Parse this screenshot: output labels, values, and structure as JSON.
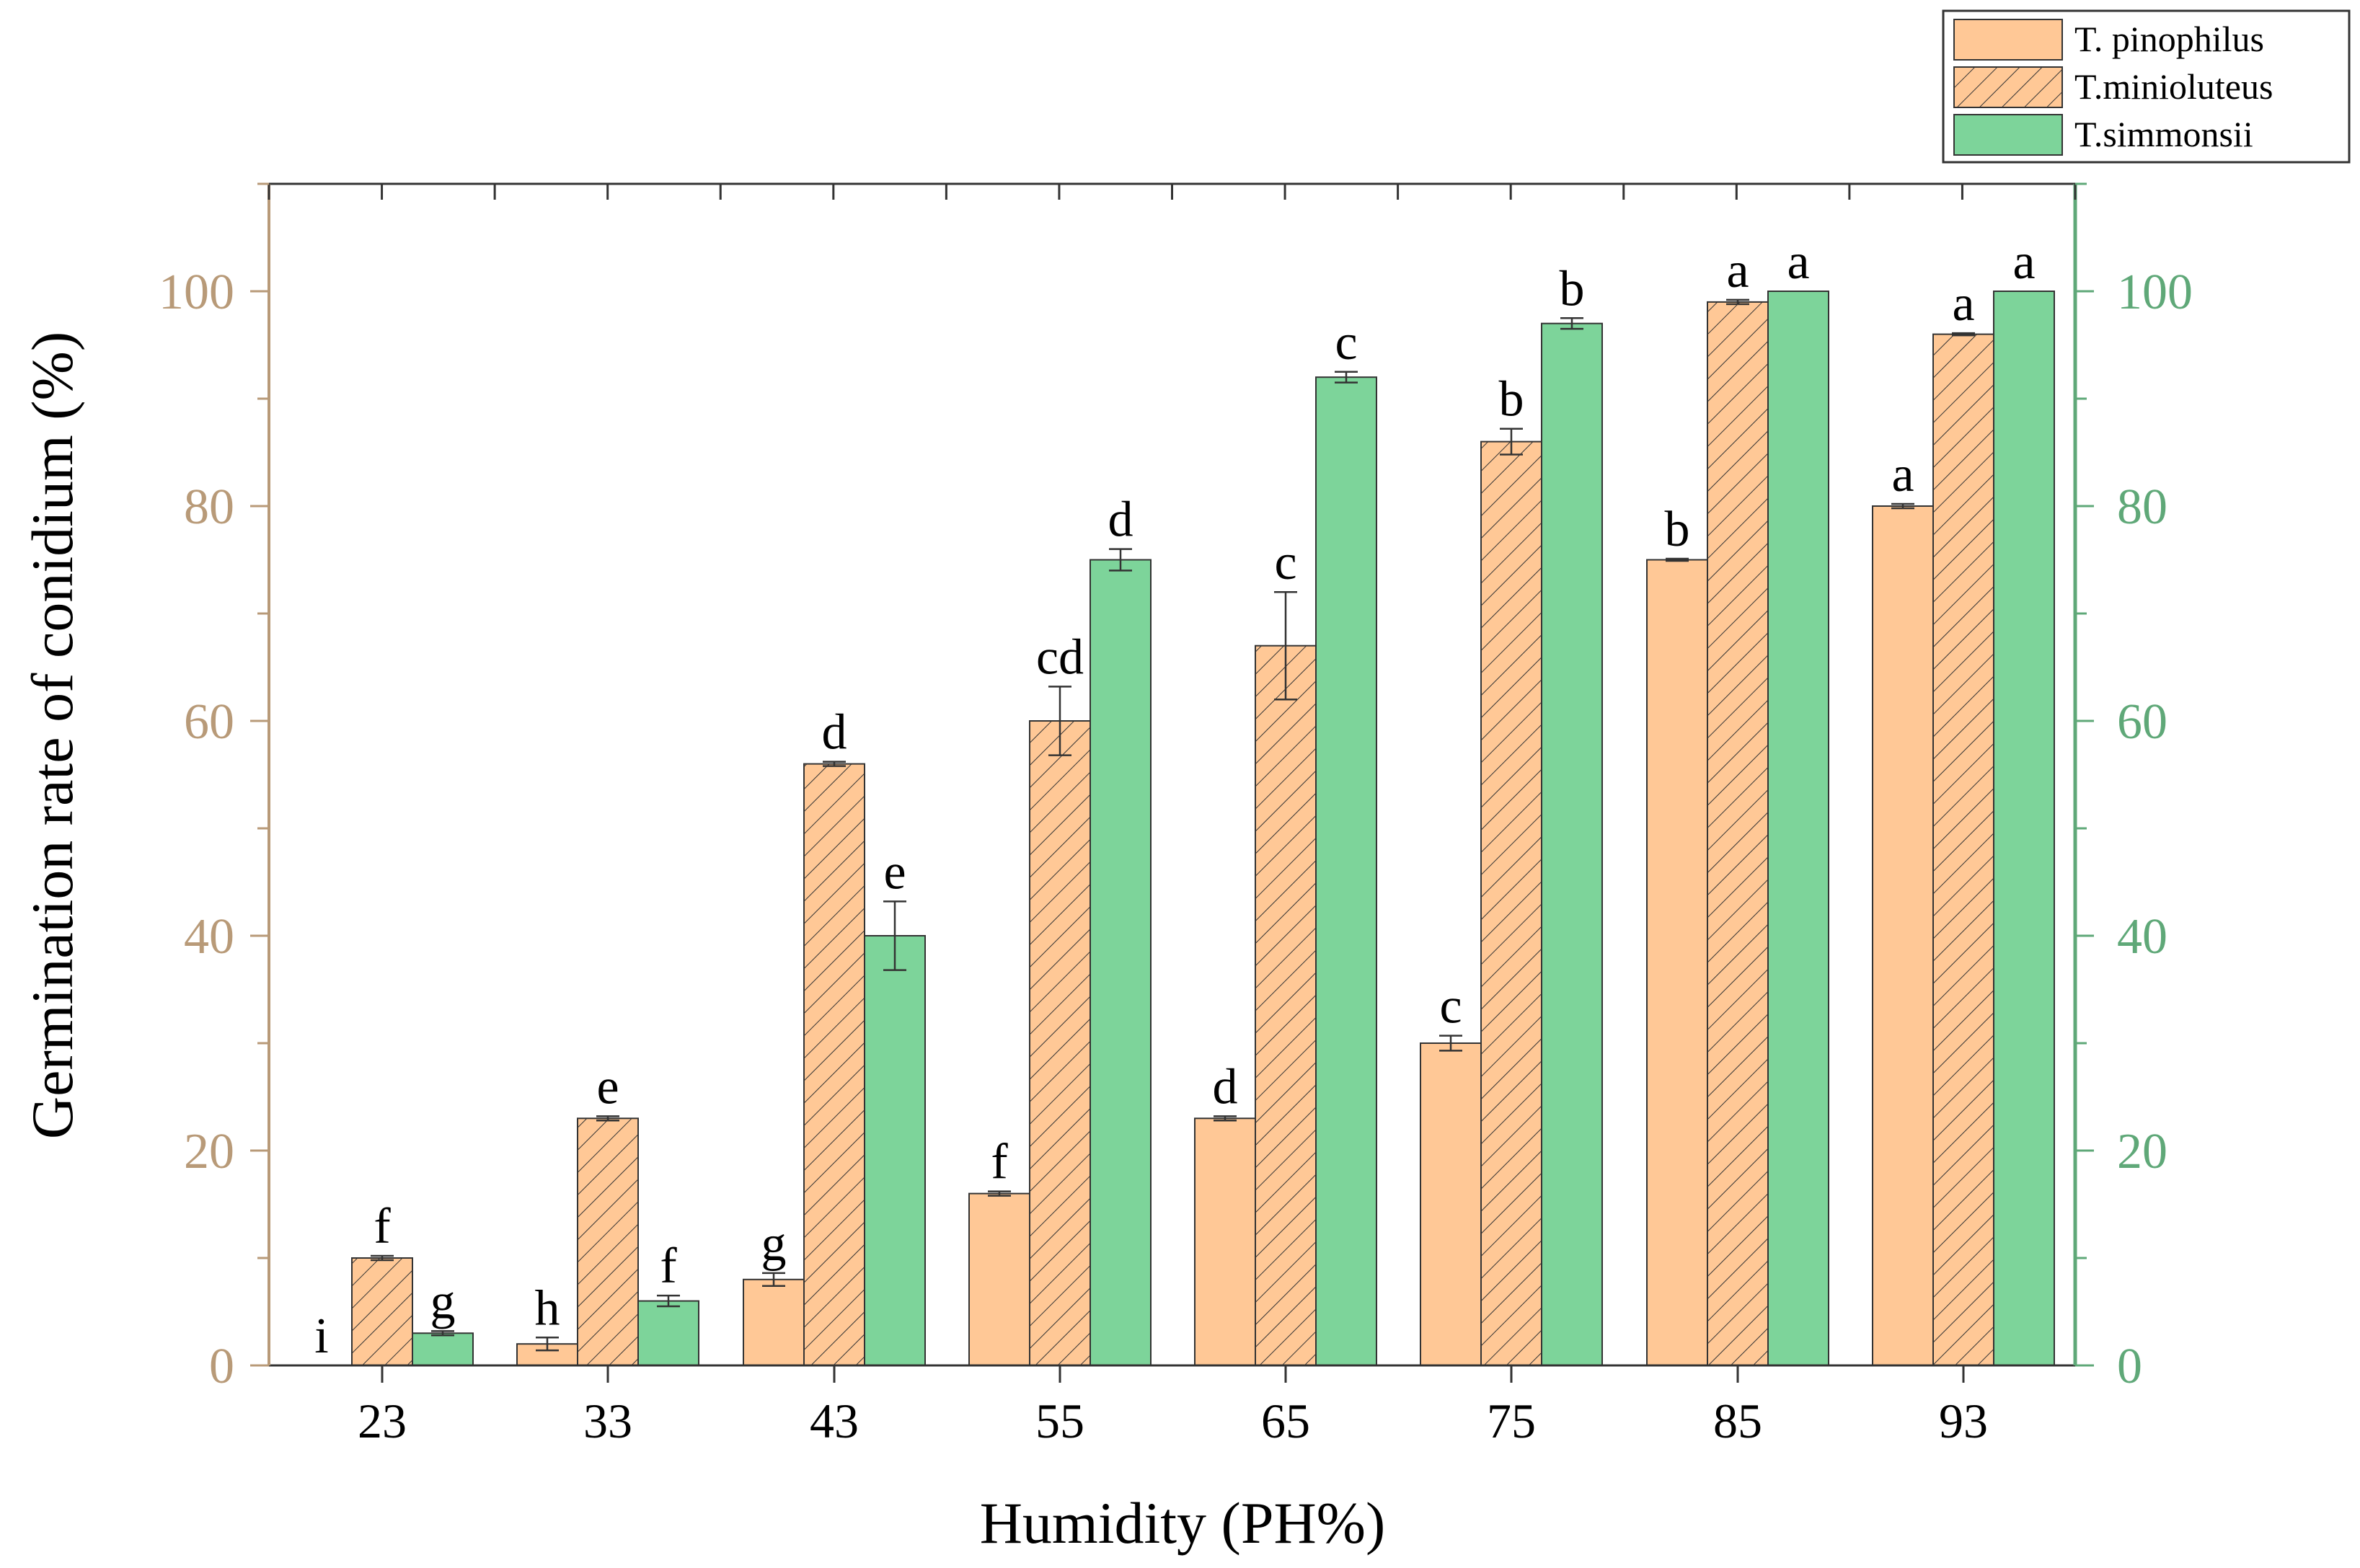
{
  "chart_data": {
    "type": "bar",
    "xlabel": "Humidity (PH%)",
    "ylabel": "Germination rate of conidium (%)",
    "ylim": [
      0,
      110
    ],
    "y_ticks": [
      0,
      20,
      40,
      60,
      80,
      100
    ],
    "y_right_ticks": [
      0,
      20,
      40,
      60,
      80,
      100
    ],
    "categories": [
      "23",
      "33",
      "43",
      "55",
      "65",
      "75",
      "85",
      "93"
    ],
    "legend_position": "top-right",
    "grid": false,
    "colors": {
      "pinophilus": "#FFC896",
      "minioluteus": "#FFC896",
      "simmonsii": "#7DD49A",
      "left_axis": "#B89A78",
      "right_axis": "#5FA878",
      "hatch": "#333333"
    },
    "series": [
      {
        "name": "T. pinophilus",
        "values": [
          0,
          2,
          8,
          16,
          23,
          30,
          75,
          80
        ],
        "errors": [
          0,
          0.6,
          0.6,
          0.2,
          0.2,
          0.7,
          0.1,
          0.2
        ],
        "labels": [
          "i",
          "h",
          "g",
          "f",
          "d",
          "c",
          "b",
          "a"
        ]
      },
      {
        "name": "T.minioluteus",
        "values": [
          10,
          23,
          56,
          60,
          67,
          86,
          99,
          96
        ],
        "errors": [
          0.2,
          0.2,
          0.2,
          3.2,
          5.0,
          1.2,
          0.2,
          0.1
        ],
        "labels": [
          "f",
          "e",
          "d",
          "cd",
          "c",
          "b",
          "a",
          "a"
        ]
      },
      {
        "name": "T.simmonsii",
        "values": [
          3,
          6,
          40,
          75,
          92,
          97,
          100,
          100
        ],
        "errors": [
          0.2,
          0.5,
          3.2,
          1.0,
          0.5,
          0.5,
          0,
          0
        ],
        "labels": [
          "g",
          "f",
          "e",
          "d",
          "c",
          "b",
          "a",
          "a"
        ]
      }
    ]
  }
}
